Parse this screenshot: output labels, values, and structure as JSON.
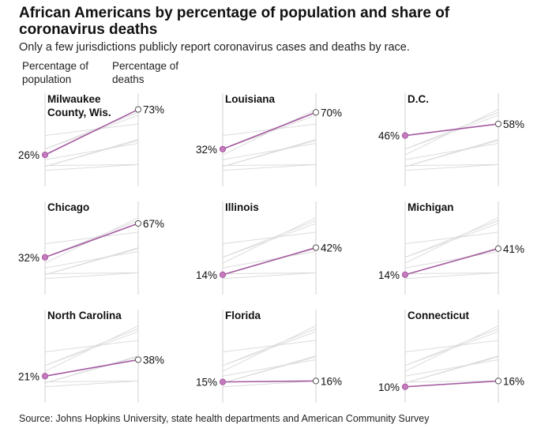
{
  "header": {
    "title": "African Americans by percentage of population and share of coronavirus deaths",
    "subtitle": "Only a few jurisdictions publicly report coronavirus cases and deaths by race.",
    "col_left": "Percentage of population",
    "col_right": "Percentage of deaths"
  },
  "source": "Source: Johns Hopkins University, state health departments and American Community Survey",
  "colors": {
    "highlight": "#a45aa0",
    "highlight_point": "#c77bbf",
    "background_lines": "#dcdcdc",
    "axis": "#d0d0d0",
    "end_point_fill": "#ffffff"
  },
  "chart_data": {
    "type": "line",
    "x": [
      "Percentage of population",
      "Percentage of deaths"
    ],
    "ylim": [
      0,
      80
    ],
    "panels": [
      {
        "name": "Milwaukee County, Wis.",
        "values": [
          26,
          73
        ],
        "labels": [
          "26%",
          "73%"
        ]
      },
      {
        "name": "Louisiana",
        "values": [
          32,
          70
        ],
        "labels": [
          "32%",
          "70%"
        ]
      },
      {
        "name": "D.C.",
        "values": [
          46,
          58
        ],
        "labels": [
          "46%",
          "58%"
        ]
      },
      {
        "name": "Chicago",
        "values": [
          32,
          67
        ],
        "labels": [
          "32%",
          "67%"
        ]
      },
      {
        "name": "Illinois",
        "values": [
          14,
          42
        ],
        "labels": [
          "14%",
          "42%"
        ]
      },
      {
        "name": "Michigan",
        "values": [
          14,
          41
        ],
        "labels": [
          "14%",
          "41%"
        ]
      },
      {
        "name": "North Carolina",
        "values": [
          21,
          38
        ],
        "labels": [
          "21%",
          "38%"
        ]
      },
      {
        "name": "Florida",
        "values": [
          15,
          16
        ],
        "labels": [
          "15%",
          "16%"
        ]
      },
      {
        "name": "Connecticut",
        "values": [
          10,
          16
        ],
        "labels": [
          "10%",
          "16%"
        ]
      }
    ]
  }
}
